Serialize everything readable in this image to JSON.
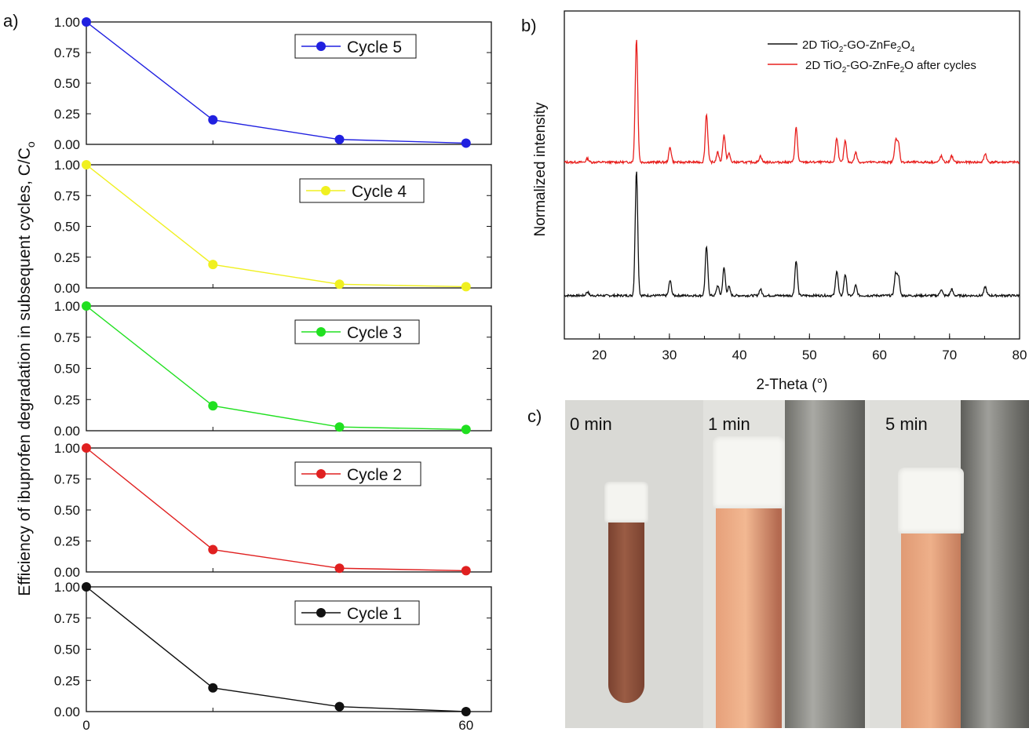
{
  "panels": {
    "a": "a)",
    "b": "b)",
    "c": "c)"
  },
  "chart_data": [
    {
      "type": "line",
      "panel": "a",
      "ylabel": "Efficiency of ibuprofen degradation in subsequent cycles, C/C",
      "ylabel_sub": "o",
      "x_ticks": [
        "0",
        "60"
      ],
      "xlim": [
        0,
        64
      ],
      "ylim": [
        0,
        1.0
      ],
      "y_ticks": [
        "0.00",
        "0.25",
        "0.50",
        "0.75",
        "1.00"
      ],
      "x": [
        0,
        20,
        40,
        60
      ],
      "series": [
        {
          "name": "Cycle 5",
          "color": "#2020e0",
          "values": [
            1.0,
            0.2,
            0.04,
            0.01
          ]
        },
        {
          "name": "Cycle 4",
          "color": "#f0f020",
          "values": [
            1.0,
            0.19,
            0.03,
            0.01
          ]
        },
        {
          "name": "Cycle 3",
          "color": "#20e020",
          "values": [
            1.0,
            0.2,
            0.03,
            0.01
          ]
        },
        {
          "name": "Cycle 2",
          "color": "#e02020",
          "values": [
            1.0,
            0.18,
            0.03,
            0.01
          ]
        },
        {
          "name": "Cycle 1",
          "color": "#111111",
          "values": [
            1.0,
            0.19,
            0.04,
            0.0
          ]
        }
      ]
    },
    {
      "type": "line",
      "panel": "b",
      "xlabel": "2-Theta (°)",
      "ylabel": "Normalized intensity",
      "xlim": [
        15,
        80
      ],
      "x_ticks": [
        "20",
        "30",
        "40",
        "50",
        "60",
        "70",
        "80"
      ],
      "grid": false,
      "legend_position": "top-right",
      "peaks_2theta": [
        18.3,
        25.3,
        30.1,
        35.3,
        36.9,
        37.8,
        38.5,
        43.0,
        48.1,
        53.9,
        55.1,
        56.6,
        62.3,
        62.7,
        68.8,
        70.3,
        75.1
      ],
      "peak_rel_heights": [
        0.03,
        1.0,
        0.12,
        0.39,
        0.08,
        0.22,
        0.07,
        0.05,
        0.28,
        0.2,
        0.17,
        0.08,
        0.17,
        0.15,
        0.05,
        0.05,
        0.07
      ],
      "series": [
        {
          "name_parts": [
            "2D TiO",
            "2",
            "-GO-ZnFe",
            "2",
            "O",
            "4"
          ],
          "color": "#111111"
        },
        {
          "name_parts": [
            "2D TiO",
            "2",
            "-GO-ZnFe",
            "2",
            "O after cycles"
          ],
          "color": "#e8201e"
        }
      ]
    }
  ],
  "photos": {
    "labels": [
      "0 min",
      "1 min",
      "5 min"
    ],
    "colors": {
      "background": "#dcdcd8",
      "suspension_dark": "#8a4f38",
      "suspension_light": "#e8a57e",
      "cap": "#f2f2ee",
      "magnet": "#8d8d88"
    }
  }
}
